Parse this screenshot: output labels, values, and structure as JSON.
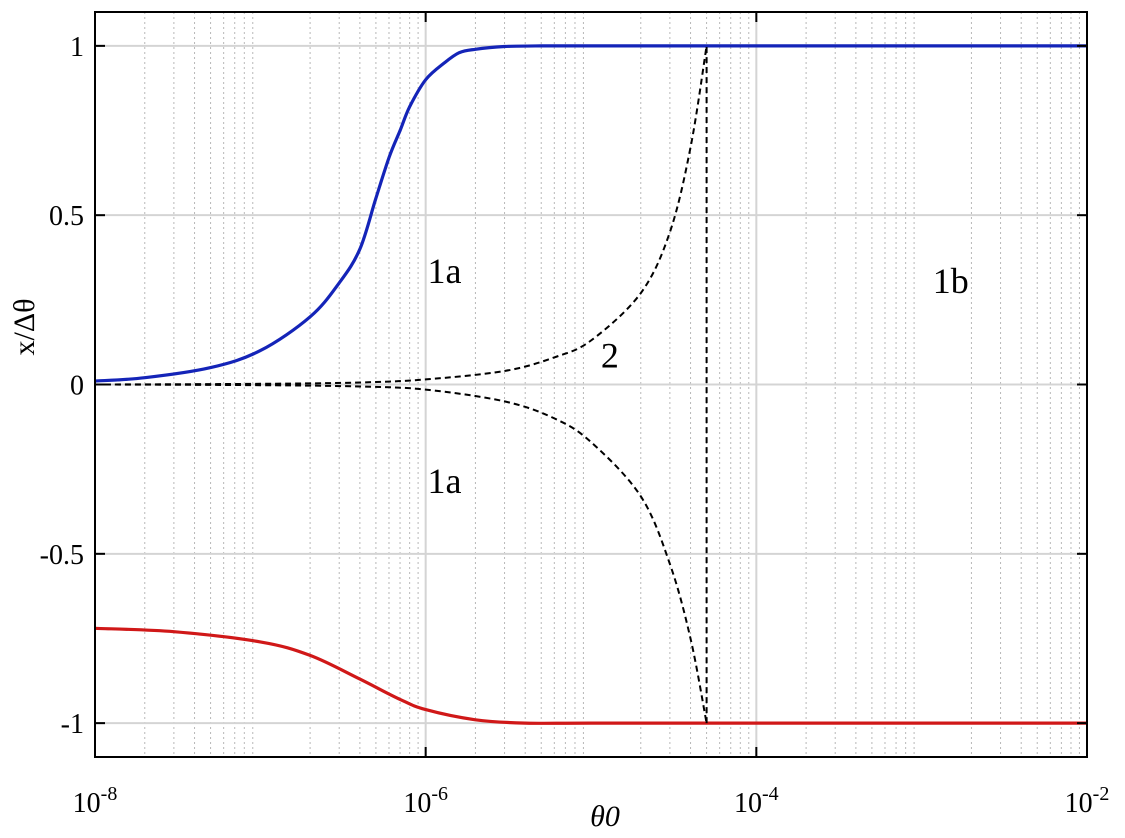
{
  "chart_data": {
    "type": "line",
    "xscale": "log",
    "xlim": [
      1e-08,
      0.01
    ],
    "ylim": [
      -1.1,
      1.1
    ],
    "grid": true,
    "xlabel": "θ0",
    "ylabel": "x/Δθ",
    "xticks": [
      {
        "value": 1e-08,
        "base": "10",
        "exp": "-8"
      },
      {
        "value": 1e-06,
        "base": "10",
        "exp": "-6"
      },
      {
        "value": 0.0001,
        "base": "10",
        "exp": "-4"
      },
      {
        "value": 0.01,
        "base": "10",
        "exp": "-2"
      }
    ],
    "yticks": [
      {
        "value": 1,
        "label": "1"
      },
      {
        "value": 0.5,
        "label": "0.5"
      },
      {
        "value": 0,
        "label": "0"
      },
      {
        "value": -0.5,
        "label": "-0.5"
      },
      {
        "value": -1,
        "label": "-1"
      }
    ],
    "series": [
      {
        "color": "#1424b8",
        "style": "solid",
        "x": [
          1e-08,
          2e-08,
          5e-08,
          1e-07,
          2e-07,
          3e-07,
          4e-07,
          5e-07,
          6e-07,
          7e-07,
          8e-07,
          1e-06,
          1.3e-06,
          1.6e-06,
          2e-06,
          3e-06,
          5e-06,
          1e-05,
          0.0001,
          0.001,
          0.01
        ],
        "y": [
          0.01,
          0.02,
          0.05,
          0.1,
          0.2,
          0.3,
          0.4,
          0.55,
          0.67,
          0.75,
          0.82,
          0.9,
          0.95,
          0.98,
          0.99,
          0.998,
          1.0,
          1.0,
          1.0,
          1.0,
          1.0
        ]
      },
      {
        "color": "#d01818",
        "style": "solid",
        "x": [
          1e-08,
          3e-08,
          1e-07,
          2e-07,
          4e-07,
          7e-07,
          1e-06,
          2e-06,
          4e-06,
          1e-05,
          0.0001,
          0.001,
          0.01
        ],
        "y": [
          -0.72,
          -0.73,
          -0.76,
          -0.8,
          -0.87,
          -0.93,
          -0.96,
          -0.99,
          -1.0,
          -1.0,
          -1.0,
          -1.0,
          -1.0
        ]
      },
      {
        "color": "#000000",
        "style": "dashed",
        "x": [
          1e-08,
          1e-07,
          4e-07,
          1e-06,
          3e-06,
          6e-06,
          1e-05,
          2e-05,
          3e-05,
          4e-05,
          5e-05
        ],
        "y": [
          0.0,
          0.002,
          0.006,
          0.015,
          0.04,
          0.08,
          0.13,
          0.27,
          0.45,
          0.7,
          1.0
        ]
      },
      {
        "color": "#000000",
        "style": "dashed",
        "x": [
          1e-08,
          1e-07,
          4e-07,
          1e-06,
          3e-06,
          6e-06,
          1e-05,
          2e-05,
          3e-05,
          4e-05,
          5e-05
        ],
        "y": [
          0.0,
          -0.002,
          -0.006,
          -0.015,
          -0.05,
          -0.1,
          -0.17,
          -0.33,
          -0.53,
          -0.75,
          -1.0
        ]
      },
      {
        "color": "#000000",
        "style": "dashed",
        "x": [
          5e-05,
          5e-05
        ],
        "y": [
          -1.0,
          1.0
        ]
      }
    ],
    "annotations": [
      {
        "text": "1a",
        "x": 1.3e-06,
        "y": 0.3
      },
      {
        "text": "1a",
        "x": 1.3e-06,
        "y": -0.32
      },
      {
        "text": "2",
        "x": 1.3e-05,
        "y": 0.05
      },
      {
        "text": "1b",
        "x": 0.0015,
        "y": 0.27
      }
    ]
  }
}
